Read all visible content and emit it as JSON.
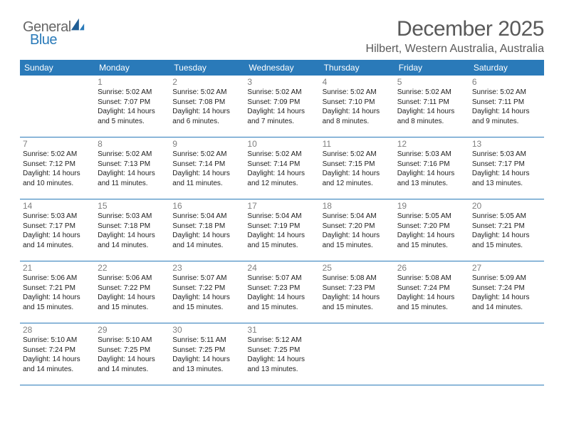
{
  "brand": {
    "name_part1": "General",
    "name_part2": "Blue",
    "gray_color": "#666666",
    "blue_color": "#2a7ab9",
    "sail_color": "#1f5d94"
  },
  "title": {
    "month": "December 2025",
    "location": "Hilbert, Western Australia, Australia",
    "title_color": "#595959",
    "title_fontsize": 30,
    "location_fontsize": 16
  },
  "styling": {
    "header_bg": "#2a7ab9",
    "header_text_color": "#ffffff",
    "cell_border_color": "#2a7ab9",
    "daynum_color": "#808080",
    "body_text_color": "#222222",
    "page_bg": "#ffffff",
    "header_fontsize": 12,
    "cell_fontsize": 10,
    "daynum_fontsize": 12,
    "col_count": 7
  },
  "headers": [
    "Sunday",
    "Monday",
    "Tuesday",
    "Wednesday",
    "Thursday",
    "Friday",
    "Saturday"
  ],
  "weeks": [
    [
      null,
      {
        "n": "1",
        "sr": "Sunrise: 5:02 AM",
        "ss": "Sunset: 7:07 PM",
        "d1": "Daylight: 14 hours",
        "d2": "and 5 minutes."
      },
      {
        "n": "2",
        "sr": "Sunrise: 5:02 AM",
        "ss": "Sunset: 7:08 PM",
        "d1": "Daylight: 14 hours",
        "d2": "and 6 minutes."
      },
      {
        "n": "3",
        "sr": "Sunrise: 5:02 AM",
        "ss": "Sunset: 7:09 PM",
        "d1": "Daylight: 14 hours",
        "d2": "and 7 minutes."
      },
      {
        "n": "4",
        "sr": "Sunrise: 5:02 AM",
        "ss": "Sunset: 7:10 PM",
        "d1": "Daylight: 14 hours",
        "d2": "and 8 minutes."
      },
      {
        "n": "5",
        "sr": "Sunrise: 5:02 AM",
        "ss": "Sunset: 7:11 PM",
        "d1": "Daylight: 14 hours",
        "d2": "and 8 minutes."
      },
      {
        "n": "6",
        "sr": "Sunrise: 5:02 AM",
        "ss": "Sunset: 7:11 PM",
        "d1": "Daylight: 14 hours",
        "d2": "and 9 minutes."
      }
    ],
    [
      {
        "n": "7",
        "sr": "Sunrise: 5:02 AM",
        "ss": "Sunset: 7:12 PM",
        "d1": "Daylight: 14 hours",
        "d2": "and 10 minutes."
      },
      {
        "n": "8",
        "sr": "Sunrise: 5:02 AM",
        "ss": "Sunset: 7:13 PM",
        "d1": "Daylight: 14 hours",
        "d2": "and 11 minutes."
      },
      {
        "n": "9",
        "sr": "Sunrise: 5:02 AM",
        "ss": "Sunset: 7:14 PM",
        "d1": "Daylight: 14 hours",
        "d2": "and 11 minutes."
      },
      {
        "n": "10",
        "sr": "Sunrise: 5:02 AM",
        "ss": "Sunset: 7:14 PM",
        "d1": "Daylight: 14 hours",
        "d2": "and 12 minutes."
      },
      {
        "n": "11",
        "sr": "Sunrise: 5:02 AM",
        "ss": "Sunset: 7:15 PM",
        "d1": "Daylight: 14 hours",
        "d2": "and 12 minutes."
      },
      {
        "n": "12",
        "sr": "Sunrise: 5:03 AM",
        "ss": "Sunset: 7:16 PM",
        "d1": "Daylight: 14 hours",
        "d2": "and 13 minutes."
      },
      {
        "n": "13",
        "sr": "Sunrise: 5:03 AM",
        "ss": "Sunset: 7:17 PM",
        "d1": "Daylight: 14 hours",
        "d2": "and 13 minutes."
      }
    ],
    [
      {
        "n": "14",
        "sr": "Sunrise: 5:03 AM",
        "ss": "Sunset: 7:17 PM",
        "d1": "Daylight: 14 hours",
        "d2": "and 14 minutes."
      },
      {
        "n": "15",
        "sr": "Sunrise: 5:03 AM",
        "ss": "Sunset: 7:18 PM",
        "d1": "Daylight: 14 hours",
        "d2": "and 14 minutes."
      },
      {
        "n": "16",
        "sr": "Sunrise: 5:04 AM",
        "ss": "Sunset: 7:18 PM",
        "d1": "Daylight: 14 hours",
        "d2": "and 14 minutes."
      },
      {
        "n": "17",
        "sr": "Sunrise: 5:04 AM",
        "ss": "Sunset: 7:19 PM",
        "d1": "Daylight: 14 hours",
        "d2": "and 15 minutes."
      },
      {
        "n": "18",
        "sr": "Sunrise: 5:04 AM",
        "ss": "Sunset: 7:20 PM",
        "d1": "Daylight: 14 hours",
        "d2": "and 15 minutes."
      },
      {
        "n": "19",
        "sr": "Sunrise: 5:05 AM",
        "ss": "Sunset: 7:20 PM",
        "d1": "Daylight: 14 hours",
        "d2": "and 15 minutes."
      },
      {
        "n": "20",
        "sr": "Sunrise: 5:05 AM",
        "ss": "Sunset: 7:21 PM",
        "d1": "Daylight: 14 hours",
        "d2": "and 15 minutes."
      }
    ],
    [
      {
        "n": "21",
        "sr": "Sunrise: 5:06 AM",
        "ss": "Sunset: 7:21 PM",
        "d1": "Daylight: 14 hours",
        "d2": "and 15 minutes."
      },
      {
        "n": "22",
        "sr": "Sunrise: 5:06 AM",
        "ss": "Sunset: 7:22 PM",
        "d1": "Daylight: 14 hours",
        "d2": "and 15 minutes."
      },
      {
        "n": "23",
        "sr": "Sunrise: 5:07 AM",
        "ss": "Sunset: 7:22 PM",
        "d1": "Daylight: 14 hours",
        "d2": "and 15 minutes."
      },
      {
        "n": "24",
        "sr": "Sunrise: 5:07 AM",
        "ss": "Sunset: 7:23 PM",
        "d1": "Daylight: 14 hours",
        "d2": "and 15 minutes."
      },
      {
        "n": "25",
        "sr": "Sunrise: 5:08 AM",
        "ss": "Sunset: 7:23 PM",
        "d1": "Daylight: 14 hours",
        "d2": "and 15 minutes."
      },
      {
        "n": "26",
        "sr": "Sunrise: 5:08 AM",
        "ss": "Sunset: 7:24 PM",
        "d1": "Daylight: 14 hours",
        "d2": "and 15 minutes."
      },
      {
        "n": "27",
        "sr": "Sunrise: 5:09 AM",
        "ss": "Sunset: 7:24 PM",
        "d1": "Daylight: 14 hours",
        "d2": "and 14 minutes."
      }
    ],
    [
      {
        "n": "28",
        "sr": "Sunrise: 5:10 AM",
        "ss": "Sunset: 7:24 PM",
        "d1": "Daylight: 14 hours",
        "d2": "and 14 minutes."
      },
      {
        "n": "29",
        "sr": "Sunrise: 5:10 AM",
        "ss": "Sunset: 7:25 PM",
        "d1": "Daylight: 14 hours",
        "d2": "and 14 minutes."
      },
      {
        "n": "30",
        "sr": "Sunrise: 5:11 AM",
        "ss": "Sunset: 7:25 PM",
        "d1": "Daylight: 14 hours",
        "d2": "and 13 minutes."
      },
      {
        "n": "31",
        "sr": "Sunrise: 5:12 AM",
        "ss": "Sunset: 7:25 PM",
        "d1": "Daylight: 14 hours",
        "d2": "and 13 minutes."
      },
      null,
      null,
      null
    ]
  ]
}
